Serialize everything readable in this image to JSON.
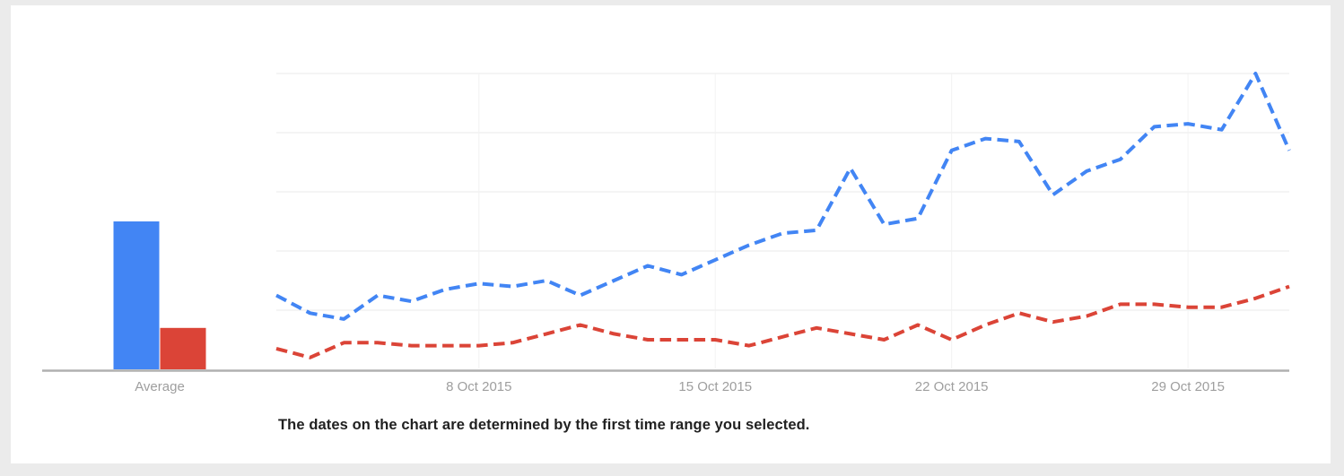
{
  "page": {
    "background": "#ebebeb",
    "card_background": "#ffffff"
  },
  "note": "The dates on the chart are determined by the first time range you selected.",
  "chart_data": {
    "type": "line",
    "subtype": "dashed-trend-lines-with-average-bars",
    "title": "",
    "avg_label": "Average",
    "x_ticks": [
      {
        "label": "8 Oct 2015",
        "index": 6
      },
      {
        "label": "15 Oct 2015",
        "index": 13
      },
      {
        "label": "22 Oct 2015",
        "index": 20
      },
      {
        "label": "29 Oct 2015",
        "index": 27
      }
    ],
    "n_points": 31,
    "ylim": [
      0,
      100
    ],
    "gridline_values": [
      20,
      40,
      60,
      80,
      100
    ],
    "grid": "horizontal-on-faint-vertical-at-ticks",
    "legend": "none",
    "series": [
      {
        "id": "series-blue",
        "color": "#4285f4",
        "average": 50,
        "values": [
          25,
          19,
          17,
          25,
          23,
          27,
          29,
          28,
          30,
          25,
          30,
          35,
          32,
          37,
          42,
          46,
          47,
          68,
          49,
          51,
          74,
          78,
          77,
          59,
          67,
          71,
          82,
          83,
          81,
          100,
          74
        ]
      },
      {
        "id": "series-red",
        "color": "#db4437",
        "average": 14,
        "values": [
          7,
          4,
          9,
          9,
          8,
          8,
          8,
          9,
          12,
          15,
          12,
          10,
          10,
          10,
          8,
          11,
          14,
          12,
          10,
          15,
          10,
          15,
          19,
          16,
          18,
          22,
          22,
          21,
          21,
          24,
          28
        ]
      }
    ],
    "axis_color": "#b0b0b0",
    "gridline_color": "#e9e9e9",
    "vertical_gridline_color": "#f2f2f2",
    "label_color": "#9e9e9e",
    "note_color": "#212121"
  }
}
